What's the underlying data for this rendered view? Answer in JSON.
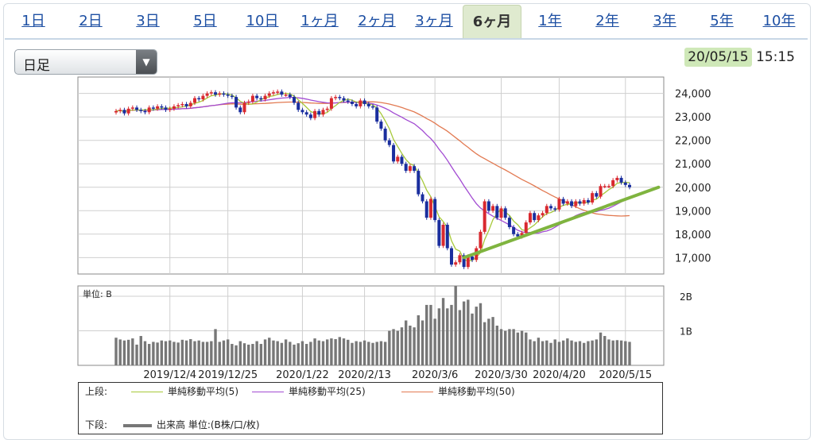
{
  "tabs": [
    {
      "label": "1日",
      "active": false
    },
    {
      "label": "2日",
      "active": false
    },
    {
      "label": "3日",
      "active": false
    },
    {
      "label": "5日",
      "active": false
    },
    {
      "label": "10日",
      "active": false
    },
    {
      "label": "1ヶ月",
      "active": false
    },
    {
      "label": "2ヶ月",
      "active": false
    },
    {
      "label": "3ヶ月",
      "active": false
    },
    {
      "label": "6ヶ月",
      "active": true
    },
    {
      "label": "1年",
      "active": false
    },
    {
      "label": "2年",
      "active": false
    },
    {
      "label": "3年",
      "active": false
    },
    {
      "label": "5年",
      "active": false
    },
    {
      "label": "10年",
      "active": false
    }
  ],
  "period_select": {
    "value": "日足",
    "arrow": "▼"
  },
  "timestamp": {
    "date": "20/05/15",
    "time": "15:15"
  },
  "colors": {
    "up": "#d9292f",
    "down": "#1a2e9e",
    "ma5": "#a7c93a",
    "ma25": "#a24bd2",
    "ma50": "#e27a52",
    "trend": "#7fb43f",
    "volume": "#777777"
  },
  "legend": {
    "upper_label": "上段:",
    "lower_label": "下段:",
    "ma5": "単純移動平均(5)",
    "ma25": "単純移動平均(25)",
    "ma50": "単純移動平均(50)",
    "volume": "出来高 単位:(B株/口/枚)"
  },
  "chart_data": [
    {
      "type": "candlestick",
      "ylim": [
        16300,
        24700
      ],
      "y_ticks": [
        "24,000",
        "23,000",
        "22,000",
        "21,000",
        "20,000",
        "19,000",
        "18,000",
        "17,000"
      ],
      "y_tick_values": [
        24000,
        23000,
        22000,
        21000,
        20000,
        19000,
        18000,
        17000
      ],
      "x_tick_labels": [
        "2019/12/4",
        "2019/12/25",
        "2020/1/22",
        "2020/2/13",
        "2020/3/6",
        "2020/3/30",
        "2020/4/20",
        "2020/5/15"
      ],
      "x_tick_indices": [
        13,
        27,
        45,
        60,
        77,
        93,
        107,
        123
      ],
      "close": [
        23250,
        23300,
        23150,
        23350,
        23400,
        23300,
        23250,
        23200,
        23400,
        23350,
        23450,
        23400,
        23300,
        23350,
        23450,
        23500,
        23550,
        23450,
        23600,
        23800,
        23750,
        23900,
        24000,
        24050,
        23950,
        24000,
        23950,
        23900,
        23850,
        23400,
        23200,
        23600,
        23650,
        23900,
        23800,
        23750,
        23900,
        24000,
        24050,
        24080,
        23950,
        23950,
        23850,
        23600,
        23300,
        23200,
        23100,
        22950,
        23250,
        23100,
        23300,
        23350,
        23800,
        23850,
        23800,
        23700,
        23650,
        23550,
        23450,
        23700,
        23550,
        23450,
        23400,
        22800,
        22500,
        22000,
        21800,
        21100,
        21300,
        21000,
        20700,
        20900,
        20700,
        19700,
        19400,
        18700,
        19500,
        18600,
        17500,
        18400,
        17400,
        16700,
        16800,
        17100,
        16600,
        17050,
        16900,
        17400,
        18100,
        19400,
        19000,
        19200,
        18700,
        19100,
        18700,
        18300,
        18000,
        17900,
        18050,
        18500,
        18900,
        18600,
        18800,
        18900,
        19200,
        19100,
        19050,
        19500,
        19300,
        19400,
        19200,
        19400,
        19300,
        19450,
        19350,
        19750,
        19600,
        20050,
        20050,
        20050,
        20300,
        20400,
        20200,
        20100,
        20000
      ],
      "volume_unit_label": "単位: B",
      "volume_ticks": [
        "2B",
        "1B"
      ],
      "volume_tick_values": [
        2,
        1
      ],
      "volume_ylim": [
        0,
        2.3
      ],
      "volume": [
        0.8,
        0.75,
        0.72,
        0.74,
        0.78,
        0.6,
        0.85,
        0.7,
        0.62,
        0.68,
        0.66,
        0.72,
        0.7,
        0.72,
        0.68,
        0.66,
        0.74,
        0.72,
        0.76,
        0.7,
        0.72,
        0.68,
        0.68,
        0.7,
        1.05,
        0.68,
        0.72,
        0.75,
        0.62,
        0.58,
        0.7,
        0.64,
        0.6,
        0.62,
        0.7,
        0.62,
        0.75,
        0.8,
        0.72,
        0.7,
        0.65,
        0.75,
        0.68,
        0.6,
        0.64,
        0.7,
        0.62,
        0.68,
        0.78,
        0.72,
        0.7,
        0.75,
        0.78,
        0.76,
        0.82,
        0.78,
        0.74,
        0.65,
        0.7,
        0.68,
        0.72,
        0.68,
        0.65,
        0.68,
        0.7,
        0.68,
        1.0,
        1.05,
        1.0,
        1.1,
        1.3,
        1.15,
        1.1,
        1.45,
        1.3,
        1.75,
        1.75,
        1.35,
        1.65,
        1.95,
        1.65,
        1.75,
        2.3,
        1.6,
        1.85,
        1.9,
        1.5,
        1.7,
        1.8,
        1.25,
        1.35,
        1.4,
        1.15,
        1.05,
        1.0,
        1.05,
        1.05,
        0.95,
        1.0,
        0.95,
        0.75,
        0.7,
        0.8,
        0.7,
        0.72,
        0.65,
        0.75,
        0.68,
        0.72,
        0.78,
        0.72,
        0.68,
        0.7,
        0.65,
        0.7,
        0.72,
        0.75,
        0.95,
        0.85,
        0.75,
        0.72,
        0.73,
        0.72,
        0.7,
        0.68
      ],
      "trend_line": [
        {
          "index": 84,
          "value": 17000
        },
        {
          "index": 131,
          "value": 20000
        }
      ]
    }
  ]
}
